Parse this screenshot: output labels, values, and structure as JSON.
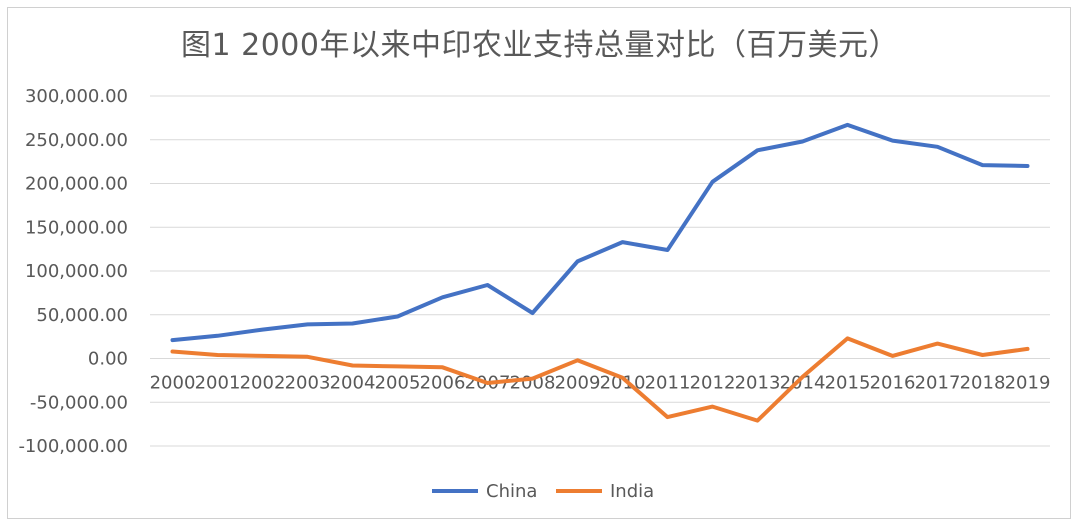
{
  "chart_data": {
    "type": "line",
    "title": "图1  2000年以来中印农业支持总量对比（百万美元）",
    "x": [
      "2000",
      "2001",
      "2002",
      "2003",
      "2004",
      "2005",
      "2006",
      "2007",
      "2008",
      "2009",
      "2010",
      "2011",
      "2012",
      "2013",
      "2014",
      "2015",
      "2016",
      "2017",
      "2018",
      "2019"
    ],
    "yticks": [
      "300,000.00",
      "250,000.00",
      "200,000.00",
      "150,000.00",
      "100,000.00",
      "50,000.00",
      "0.00",
      "-50,000.00",
      "-100,000.00"
    ],
    "ylim": [
      -100000,
      300000
    ],
    "grid": true,
    "legend_position": "bottom",
    "series": [
      {
        "name": "China",
        "color": "#4472c4",
        "values": [
          21000,
          26000,
          33000,
          39000,
          40000,
          48000,
          70000,
          84000,
          52000,
          111000,
          133000,
          124000,
          202000,
          238000,
          248000,
          267000,
          249000,
          242000,
          221000,
          220000
        ]
      },
      {
        "name": "India",
        "color": "#ed7d31",
        "values": [
          8000,
          4000,
          3000,
          2000,
          -8000,
          -9000,
          -10000,
          -28000,
          -23000,
          -2000,
          -22000,
          -67000,
          -55000,
          -71000,
          -21000,
          23000,
          3000,
          17000,
          4000,
          11000
        ]
      }
    ]
  }
}
